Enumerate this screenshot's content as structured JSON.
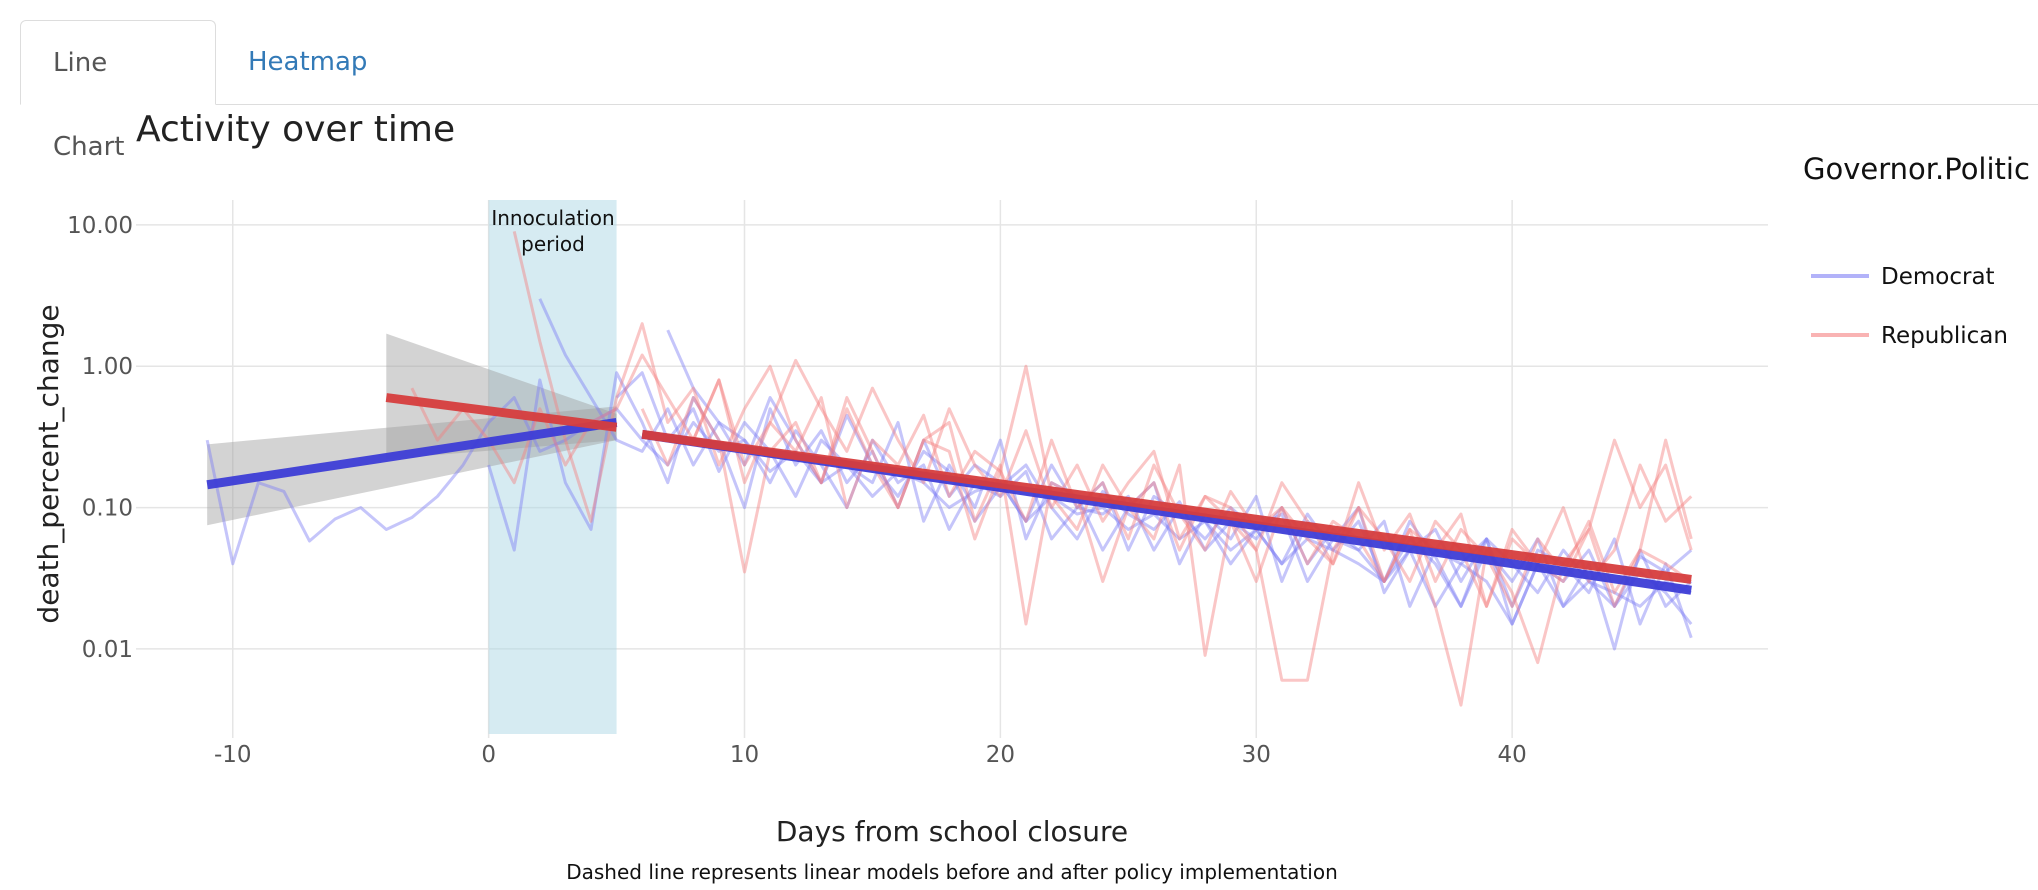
{
  "tabs": [
    {
      "label": "Line Chart",
      "active": true
    },
    {
      "label": "Heatmap",
      "active": false
    }
  ],
  "colors": {
    "democrat": "#3d3dd6",
    "republican": "#d63d3d",
    "democrat_light": "#7f7ff5",
    "republican_light": "#f58080",
    "band": "#add8e6",
    "ci": "#9e9e9e",
    "grid": "#e5e5e5"
  },
  "chart_data": {
    "type": "line",
    "title": "Activity over time",
    "xlabel": "Days from school closure",
    "ylabel": "death_percent_change",
    "caption": "Dashed line represents linear models before and after policy implementation",
    "xlim": [
      -13,
      50
    ],
    "ylim": [
      0.0025,
      15
    ],
    "yscale": "log",
    "xticks": [
      -10,
      0,
      10,
      20,
      30,
      40
    ],
    "xtick_labels": [
      "-10",
      "0",
      "10",
      "20",
      "30",
      "40"
    ],
    "yticks": [
      0.01,
      0.1,
      1,
      10
    ],
    "ytick_labels": [
      "0.01",
      "0.10",
      "1.00",
      "10.00"
    ],
    "grid": true,
    "shaded_region": {
      "x": [
        0,
        5
      ],
      "label_lines": [
        "Innoculation",
        "period"
      ]
    },
    "legend": {
      "title": "Governor.Politic",
      "position": "right",
      "entries": [
        {
          "name": "Democrat",
          "color_key": "democrat_light"
        },
        {
          "name": "Republican",
          "color_key": "republican_light"
        }
      ]
    },
    "series": [
      {
        "name": "Democrat",
        "color_key": "democrat_light",
        "group": "Democrat",
        "x": [
          -11,
          -10,
          -9,
          -8,
          -7,
          -6,
          -5,
          -4,
          -3,
          -2,
          -1,
          0,
          1,
          2,
          3,
          4,
          5,
          6,
          7,
          8,
          9,
          10,
          11,
          12,
          13,
          14,
          15,
          16,
          17,
          18,
          19,
          20,
          21,
          22,
          23,
          24,
          25,
          26,
          27,
          28,
          29,
          30,
          31,
          32,
          33,
          34,
          35,
          36,
          37,
          38,
          39,
          40,
          41,
          42,
          43,
          44,
          45,
          46,
          47
        ],
        "y": [
          0.3,
          0.04,
          0.15,
          0.13,
          0.058,
          0.083,
          0.1,
          0.07,
          0.085,
          0.12,
          0.2,
          0.4,
          0.6,
          0.25,
          0.3,
          0.4,
          0.5,
          0.3,
          0.2,
          0.4,
          0.25,
          0.3,
          0.18,
          0.25,
          0.15,
          0.2,
          0.12,
          0.18,
          0.15,
          0.1,
          0.13,
          0.15,
          0.08,
          0.12,
          0.09,
          0.1,
          0.07,
          0.09,
          0.06,
          0.08,
          0.05,
          0.07,
          0.04,
          0.06,
          0.05,
          0.04,
          0.03,
          0.05,
          0.02,
          0.04,
          0.03,
          0.015,
          0.04,
          0.02,
          0.03,
          0.025,
          0.02,
          0.03,
          0.025
        ]
      },
      {
        "name": "Democrat",
        "color_key": "democrat_light",
        "group": "Democrat",
        "x": [
          0,
          1,
          2,
          3,
          4,
          5,
          6,
          7,
          8,
          9,
          10,
          11,
          12,
          13,
          14,
          15,
          16,
          17,
          18,
          19,
          20,
          21,
          22,
          23,
          24,
          25,
          26,
          27,
          28,
          29,
          30,
          31,
          32,
          33,
          34,
          35,
          36,
          37,
          38,
          39,
          40,
          41,
          42,
          43,
          44,
          45,
          46,
          47
        ],
        "y": [
          0.2,
          0.05,
          0.8,
          0.15,
          0.07,
          0.9,
          0.4,
          0.15,
          0.6,
          0.3,
          0.1,
          0.5,
          0.2,
          0.35,
          0.15,
          0.25,
          0.1,
          0.3,
          0.12,
          0.2,
          0.15,
          0.08,
          0.2,
          0.1,
          0.15,
          0.05,
          0.12,
          0.09,
          0.06,
          0.1,
          0.07,
          0.04,
          0.09,
          0.05,
          0.08,
          0.03,
          0.06,
          0.04,
          0.02,
          0.05,
          0.03,
          0.06,
          0.02,
          0.04,
          0.01,
          0.05,
          0.02,
          0.03
        ]
      },
      {
        "name": "Democrat",
        "color_key": "democrat_light",
        "group": "Democrat",
        "x": [
          2,
          3,
          4,
          5,
          6,
          7,
          8,
          9,
          10,
          11,
          12,
          13,
          14,
          15,
          16,
          17,
          18,
          19,
          20,
          21,
          22,
          23,
          24,
          25,
          26,
          27,
          28,
          29,
          30,
          31,
          32,
          33,
          34,
          35,
          36,
          37,
          38,
          39,
          40,
          41,
          42,
          43,
          44,
          45,
          46,
          47
        ],
        "y": [
          3,
          1.2,
          0.6,
          0.3,
          0.25,
          0.5,
          0.2,
          0.4,
          0.3,
          0.15,
          0.35,
          0.2,
          0.1,
          0.3,
          0.15,
          0.2,
          0.07,
          0.15,
          0.12,
          0.18,
          0.06,
          0.1,
          0.09,
          0.12,
          0.05,
          0.1,
          0.08,
          0.04,
          0.07,
          0.09,
          0.03,
          0.06,
          0.05,
          0.08,
          0.02,
          0.05,
          0.04,
          0.06,
          0.015,
          0.04,
          0.03,
          0.05,
          0.02,
          0.035,
          0.025,
          0.015
        ]
      },
      {
        "name": "Democrat",
        "color_key": "democrat_light",
        "group": "Democrat",
        "x": [
          5,
          6,
          7,
          8,
          9,
          10,
          11,
          12,
          13,
          14,
          15,
          16,
          17,
          18,
          19,
          20,
          21,
          22,
          23,
          24,
          25,
          26,
          27,
          28,
          29,
          30,
          31,
          32,
          33,
          34,
          35,
          36,
          37,
          38,
          39,
          40,
          41,
          42,
          43,
          44,
          45,
          46,
          47
        ],
        "y": [
          0.6,
          0.9,
          0.3,
          0.5,
          0.18,
          0.4,
          0.25,
          0.12,
          0.3,
          0.2,
          0.15,
          0.4,
          0.08,
          0.2,
          0.1,
          0.3,
          0.06,
          0.15,
          0.12,
          0.05,
          0.1,
          0.15,
          0.04,
          0.09,
          0.06,
          0.12,
          0.03,
          0.08,
          0.06,
          0.1,
          0.025,
          0.05,
          0.07,
          0.03,
          0.06,
          0.02,
          0.05,
          0.04,
          0.025,
          0.06,
          0.015,
          0.04,
          0.012
        ]
      },
      {
        "name": "Democrat",
        "color_key": "democrat_light",
        "group": "Democrat",
        "x": [
          7,
          8,
          9,
          10,
          11,
          12,
          13,
          14,
          15,
          16,
          17,
          18,
          19,
          20,
          21,
          22,
          23,
          24,
          25,
          26,
          27,
          28,
          29,
          30,
          31,
          32,
          33,
          34,
          35,
          36,
          37,
          38,
          39,
          40,
          41,
          42,
          43,
          44,
          45,
          46,
          47
        ],
        "y": [
          1.8,
          0.7,
          0.4,
          0.2,
          0.6,
          0.3,
          0.15,
          0.45,
          0.2,
          0.12,
          0.25,
          0.18,
          0.08,
          0.14,
          0.2,
          0.1,
          0.06,
          0.13,
          0.09,
          0.07,
          0.11,
          0.05,
          0.08,
          0.06,
          0.1,
          0.04,
          0.07,
          0.05,
          0.03,
          0.08,
          0.045,
          0.02,
          0.06,
          0.04,
          0.025,
          0.05,
          0.03,
          0.02,
          0.045,
          0.035,
          0.05
        ]
      },
      {
        "name": "Republican",
        "color_key": "republican_light",
        "group": "Republican",
        "x": [
          1,
          2,
          3,
          4,
          5,
          6,
          7,
          8,
          9,
          10,
          11,
          12,
          13,
          14,
          15,
          16,
          17,
          18,
          19,
          20,
          21,
          22,
          23,
          24,
          25,
          26,
          27,
          28,
          29,
          30,
          31,
          32,
          33,
          34,
          35,
          36,
          37,
          38,
          39,
          40,
          41,
          42,
          43,
          44,
          45,
          46,
          47
        ],
        "y": [
          9,
          1.5,
          0.3,
          0.08,
          0.6,
          2,
          0.4,
          0.7,
          0.2,
          0.5,
          1,
          0.3,
          0.15,
          0.6,
          0.25,
          0.1,
          0.3,
          0.4,
          0.08,
          0.2,
          0.015,
          0.15,
          0.12,
          0.03,
          0.1,
          0.06,
          0.2,
          0.009,
          0.08,
          0.05,
          0.006,
          0.006,
          0.05,
          0.1,
          0.03,
          0.07,
          0.02,
          0.004,
          0.05,
          0.025,
          0.008,
          0.04,
          0.07,
          0.3,
          0.1,
          0.2,
          0.05
        ]
      },
      {
        "name": "Republican",
        "color_key": "republican_light",
        "group": "Republican",
        "x": [
          -3,
          -2,
          -1,
          0,
          1,
          2,
          3,
          4,
          5,
          6,
          7,
          8,
          9,
          10,
          11,
          12,
          13,
          14,
          15,
          16,
          17,
          18,
          19,
          20,
          21,
          22,
          23,
          24,
          25,
          26,
          27,
          28,
          29,
          30,
          31,
          32,
          33,
          34,
          35,
          36,
          37,
          38,
          39,
          40,
          41,
          42,
          43,
          44,
          45,
          46,
          47
        ],
        "y": [
          0.7,
          0.3,
          0.5,
          0.3,
          0.15,
          0.5,
          0.2,
          0.4,
          0.5,
          1.2,
          0.6,
          0.3,
          0.8,
          0.2,
          0.4,
          1.1,
          0.5,
          0.25,
          0.7,
          0.3,
          0.15,
          0.5,
          0.2,
          0.12,
          0.35,
          0.1,
          0.2,
          0.08,
          0.15,
          0.25,
          0.06,
          0.12,
          0.1,
          0.05,
          0.15,
          0.08,
          0.04,
          0.1,
          0.06,
          0.03,
          0.08,
          0.05,
          0.02,
          0.07,
          0.04,
          0.1,
          0.03,
          0.05,
          0.2,
          0.08,
          0.12
        ]
      },
      {
        "name": "Republican",
        "color_key": "republican_light",
        "group": "Republican",
        "x": [
          6,
          7,
          8,
          9,
          10,
          11,
          12,
          13,
          14,
          15,
          16,
          17,
          18,
          19,
          20,
          21,
          22,
          23,
          24,
          25,
          26,
          27,
          28,
          29,
          30,
          31,
          32,
          33,
          34,
          35,
          36,
          37,
          38,
          39,
          40,
          41,
          42,
          43,
          44,
          45,
          46,
          47
        ],
        "y": [
          0.5,
          0.2,
          0.6,
          0.3,
          0.035,
          0.25,
          0.4,
          0.15,
          0.5,
          0.2,
          0.1,
          0.3,
          0.25,
          0.06,
          0.18,
          1,
          0.12,
          0.07,
          0.2,
          0.1,
          0.15,
          0.05,
          0.12,
          0.08,
          0.03,
          0.1,
          0.06,
          0.04,
          0.15,
          0.05,
          0.09,
          0.03,
          0.07,
          0.045,
          0.02,
          0.06,
          0.035,
          0.08,
          0.025,
          0.05,
          0.3,
          0.06
        ]
      },
      {
        "name": "Republican",
        "color_key": "republican_light",
        "group": "Republican",
        "x": [
          8,
          9,
          10,
          11,
          12,
          13,
          14,
          15,
          16,
          17,
          18,
          19,
          20,
          21,
          22,
          23,
          24,
          25,
          26,
          27,
          28,
          29,
          30,
          31,
          32,
          33,
          34,
          35,
          36,
          37,
          38,
          39,
          40,
          41,
          42,
          43,
          44,
          45,
          46,
          47
        ],
        "y": [
          0.3,
          0.8,
          0.15,
          0.4,
          0.25,
          0.6,
          0.1,
          0.3,
          0.2,
          0.45,
          0.12,
          0.25,
          0.18,
          0.08,
          0.3,
          0.1,
          0.15,
          0.06,
          0.2,
          0.09,
          0.05,
          0.13,
          0.07,
          0.1,
          0.04,
          0.08,
          0.06,
          0.03,
          0.07,
          0.05,
          0.09,
          0.02,
          0.06,
          0.04,
          0.03,
          0.07,
          0.02,
          0.05,
          0.04,
          0.03
        ]
      },
      {
        "name": "Democrat",
        "color_key": "democrat",
        "group": "Democrat",
        "fit": true,
        "x": [
          -11,
          5
        ],
        "y": [
          0.145,
          0.4
        ]
      },
      {
        "name": "Democrat",
        "color_key": "democrat",
        "group": "Democrat",
        "fit": true,
        "x": [
          6,
          47
        ],
        "y": [
          0.33,
          0.026
        ]
      },
      {
        "name": "Republican",
        "color_key": "republican",
        "group": "Republican",
        "fit": true,
        "x": [
          -4,
          5
        ],
        "y": [
          0.6,
          0.37
        ]
      },
      {
        "name": "Republican",
        "color_key": "republican",
        "group": "Republican",
        "fit": true,
        "x": [
          6,
          47
        ],
        "y": [
          0.33,
          0.031
        ]
      }
    ],
    "confidence_bands": [
      {
        "group": "Democrat",
        "x": [
          -11,
          5
        ],
        "lower": [
          0.075,
          0.3
        ],
        "upper": [
          0.28,
          0.52
        ]
      },
      {
        "group": "Republican",
        "x": [
          -4,
          5
        ],
        "lower": [
          0.22,
          0.3
        ],
        "upper": [
          1.7,
          0.46
        ]
      }
    ]
  }
}
